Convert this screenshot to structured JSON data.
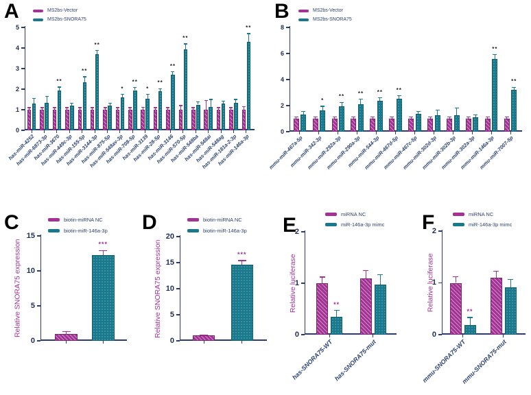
{
  "figure_title": "",
  "colors": {
    "magenta": "#A23294",
    "teal": "#17798B",
    "axis_navy": "#2b3a70",
    "label_navy": "#2c4470",
    "star_dark": "#1f1f1f"
  },
  "chart_data": [
    {
      "panel": "A",
      "panel_label": "A",
      "type": "bar",
      "title": "",
      "xlabel": "",
      "ylabel": "",
      "ylim": [
        0,
        5
      ],
      "yticks": [
        0,
        1,
        2,
        3,
        4,
        5
      ],
      "grid": false,
      "legend_position": "top-left-inside",
      "sig_color": "#1f1f1f",
      "categories": [
        "has-miR-4252",
        "has-miR-6873-3p",
        "has-miR-3670",
        "has-miR-449c-3p",
        "has-miR-155-5p",
        "has-miR-3144-3p",
        "has-miR-875-5p",
        "has-miR-548av-3p",
        "has-miR-708-5p",
        "has-miR-3139",
        "has-miR-28-5p",
        "has-miR-3146",
        "has-miR-570-5p",
        "has-miR-548ba",
        "has-miR-548ai",
        "has-miR-548ag",
        "has-miR-181a-2-3p",
        "has-miR-146a-3p"
      ],
      "series": [
        {
          "name": "MS2bs-Vector",
          "color": "#A23294",
          "values": [
            1,
            1,
            1,
            1,
            1,
            1,
            1,
            1,
            1,
            1,
            1,
            1,
            1,
            1,
            1,
            1,
            1,
            1
          ],
          "errors": [
            0.1,
            0.1,
            0.1,
            0.1,
            0.1,
            0.1,
            0.1,
            0.1,
            0.1,
            0.12,
            0.1,
            0.1,
            0.2,
            0.1,
            0.45,
            0.1,
            0.1,
            0.15
          ]
        },
        {
          "name": "MS2bs-SNORA75",
          "color": "#17798B",
          "values": [
            1.3,
            1.35,
            1.95,
            1.2,
            2.35,
            3.7,
            1.2,
            1.6,
            1.95,
            1.55,
            1.9,
            2.7,
            3.95,
            1.25,
            1.15,
            1.3,
            1.35,
            4.3
          ],
          "errors": [
            0.25,
            0.3,
            0.15,
            0.12,
            0.25,
            0.18,
            0.12,
            0.15,
            0.12,
            0.2,
            0.12,
            0.15,
            0.25,
            0.12,
            0.35,
            0.12,
            0.15,
            0.4
          ],
          "sig": [
            "",
            "",
            "**",
            "",
            "**",
            "**",
            "",
            "*",
            "**",
            "*",
            "**",
            "**",
            "**",
            "",
            "",
            "",
            "",
            "**"
          ]
        }
      ]
    },
    {
      "panel": "B",
      "panel_label": "B",
      "type": "bar",
      "title": "",
      "xlabel": "",
      "ylabel": "",
      "ylim": [
        0,
        8
      ],
      "yticks": [
        0,
        2,
        4,
        6,
        8
      ],
      "grid": false,
      "legend_position": "top-left-inside",
      "sig_color": "#1f1f1f",
      "categories": [
        "mmu-miR-467a-5p",
        "mmu-miR-342-3p",
        "mmu-miR-292a-3p",
        "mmu-miR-290a-3p",
        "mmu-miR-544-3p",
        "mmu-miR-467d-5p",
        "mmu-miR-467c-5p",
        "mmu-miR-302d-3p",
        "mmu-miR-302b-3p",
        "mmu-miR-302a-3p",
        "mmu-miR-146a-3p",
        "mmu-miR-7007-5p"
      ],
      "series": [
        {
          "name": "MS2bs-Vector",
          "color": "#A23294",
          "values": [
            1,
            1,
            1,
            1,
            1,
            1,
            1,
            1,
            1,
            1,
            1,
            1
          ],
          "errors": [
            0.15,
            0.15,
            0.15,
            0.15,
            0.15,
            0.15,
            0.15,
            0.15,
            0.15,
            0.15,
            0.15,
            0.15
          ]
        },
        {
          "name": "MS2bs-SNORA75",
          "color": "#17798B",
          "values": [
            1.3,
            1.65,
            1.95,
            2.1,
            2.35,
            2.55,
            1.35,
            1.25,
            1.25,
            1.1,
            5.6,
            3.2
          ],
          "errors": [
            0.25,
            0.3,
            0.3,
            0.4,
            0.25,
            0.2,
            0.2,
            0.4,
            0.55,
            0.2,
            0.3,
            0.2
          ],
          "sig": [
            "",
            "*",
            "**",
            "**",
            "**",
            "**",
            "",
            "",
            "",
            "",
            "**",
            "**"
          ]
        }
      ]
    },
    {
      "panel": "C",
      "panel_label": "C",
      "type": "bar",
      "title": "",
      "xlabel": "",
      "ylabel": "Relative SNORA75 expression",
      "ylim": [
        0,
        15
      ],
      "yticks": [
        0,
        5,
        10,
        15
      ],
      "grid": false,
      "legend_position": "top-right-inside",
      "sig_color": "#A23294",
      "categories": [
        "",
        ""
      ],
      "series": [
        {
          "name": "biotin-miRNA NC",
          "color": "#A23294",
          "values": [
            1.0,
            null
          ],
          "errors": [
            0.3,
            null
          ]
        },
        {
          "name": "biotin-miR-146a-3p",
          "color": "#17798B",
          "error_color": "#A23294",
          "values": [
            null,
            12.3
          ],
          "errors": [
            null,
            0.6
          ],
          "sig": [
            "",
            "***"
          ]
        }
      ]
    },
    {
      "panel": "D",
      "panel_label": "D",
      "type": "bar",
      "title": "",
      "xlabel": "",
      "ylabel": "Relative SNORA75 expression",
      "ylim": [
        0,
        20
      ],
      "yticks": [
        0,
        5,
        10,
        15,
        20
      ],
      "grid": false,
      "legend_position": "top-right-inside",
      "sig_color": "#A23294",
      "categories": [
        "",
        ""
      ],
      "series": [
        {
          "name": "biotin-miRNA NC",
          "color": "#A23294",
          "values": [
            1.0,
            null
          ],
          "errors": [
            0.1,
            null
          ]
        },
        {
          "name": "biotin-miR-146a-3p",
          "color": "#17798B",
          "error_color": "#A23294",
          "values": [
            null,
            14.6
          ],
          "errors": [
            null,
            0.8
          ],
          "sig": [
            "",
            "***"
          ]
        }
      ]
    },
    {
      "panel": "E",
      "panel_label": "E",
      "type": "bar",
      "title": "",
      "xlabel": "",
      "ylabel": "Relative luciferase",
      "ylim": [
        0,
        2
      ],
      "yticks": [
        0,
        1,
        2
      ],
      "grid": false,
      "legend_position": "top-right-inside",
      "sig_color": "#A23294",
      "categories": [
        "has-SNORA75-WT",
        "has-SNORA75-mut"
      ],
      "series": [
        {
          "name": "miRNA NC",
          "color": "#A23294",
          "values": [
            1.0,
            1.1
          ],
          "errors": [
            0.12,
            0.15
          ]
        },
        {
          "name": "miR-146a-3p mimc",
          "color": "#17798B",
          "values": [
            0.35,
            0.97
          ],
          "errors": [
            0.12,
            0.2
          ],
          "sig": [
            "**",
            ""
          ]
        }
      ]
    },
    {
      "panel": "F",
      "panel_label": "F",
      "type": "bar",
      "title": "",
      "xlabel": "",
      "ylabel": "Relative luciferase",
      "ylim": [
        0,
        2
      ],
      "yticks": [
        0,
        1,
        2
      ],
      "grid": false,
      "legend_position": "top-right-inside",
      "sig_color": "#A23294",
      "categories": [
        "mmu-SNORA75-WT",
        "mmu-SNORA75-mut"
      ],
      "series": [
        {
          "name": "miRNA NC",
          "color": "#A23294",
          "values": [
            1.0,
            1.1
          ],
          "errors": [
            0.12,
            0.12
          ]
        },
        {
          "name": "miR-146a-3p mimc",
          "color": "#17798B",
          "values": [
            0.18,
            0.92
          ],
          "errors": [
            0.15,
            0.15
          ],
          "sig": [
            "**",
            ""
          ]
        }
      ]
    }
  ]
}
